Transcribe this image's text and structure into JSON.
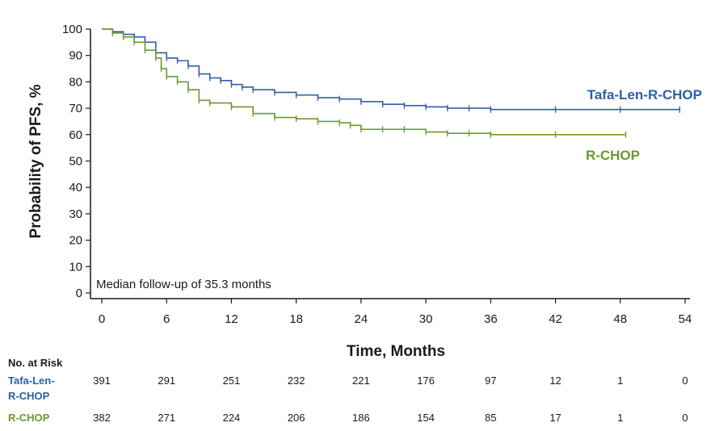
{
  "chart_data": {
    "type": "line",
    "xlabel": "Time, Months",
    "ylabel": "Probability of PFS, %",
    "xlim": [
      0,
      54
    ],
    "ylim": [
      0,
      100
    ],
    "x_ticks": [
      "0",
      "6",
      "12",
      "18",
      "24",
      "30",
      "36",
      "42",
      "48",
      "54"
    ],
    "y_ticks": [
      "0",
      "10",
      "20",
      "30",
      "40",
      "50",
      "60",
      "70",
      "80",
      "90",
      "100"
    ],
    "annotation": "Median follow-up of 35.3 months",
    "series": [
      {
        "name": "Tafa-Len-R-CHOP",
        "color": "#2e5fa6",
        "x": [
          0,
          1,
          2,
          3,
          4,
          5,
          6,
          7,
          8,
          9,
          10,
          11,
          12,
          13,
          14,
          16,
          18,
          20,
          22,
          24,
          26,
          28,
          30,
          32,
          34,
          36,
          42,
          48,
          53.5
        ],
        "y": [
          100,
          99,
          98,
          97,
          95,
          91,
          89,
          88,
          86,
          83,
          81.5,
          80.5,
          79,
          78,
          77,
          76,
          75,
          74,
          73.5,
          72.5,
          71.5,
          71,
          70.5,
          70,
          70,
          69.5,
          69.5,
          69.5,
          69.5
        ]
      },
      {
        "name": "R-CHOP",
        "color": "#6a9a2e",
        "x": [
          0,
          1,
          2,
          3,
          4,
          5,
          5.5,
          6,
          7,
          8,
          9,
          10,
          12,
          14,
          16,
          18,
          20,
          22,
          23,
          24,
          26,
          28,
          30,
          32,
          34,
          36,
          42,
          48.5
        ],
        "y": [
          100,
          98.5,
          97,
          95,
          92,
          89,
          85,
          82,
          80,
          77,
          73,
          72,
          70.5,
          68,
          66.5,
          66,
          65,
          64.5,
          63.5,
          62,
          62,
          62,
          61,
          60.5,
          60.5,
          60,
          60,
          60
        ]
      }
    ],
    "at_risk": {
      "title": "No. at Risk",
      "rows": [
        {
          "name": "Tafa-Len-R-CHOP",
          "line1": "Tafa-Len-",
          "line2": "R-CHOP",
          "values": [
            "391",
            "291",
            "251",
            "232",
            "221",
            "176",
            "97",
            "12",
            "1",
            "0"
          ]
        },
        {
          "name": "R-CHOP",
          "line1": "R-CHOP",
          "line2": "",
          "values": [
            "382",
            "271",
            "224",
            "206",
            "186",
            "154",
            "85",
            "17",
            "1",
            "0"
          ]
        }
      ]
    }
  }
}
